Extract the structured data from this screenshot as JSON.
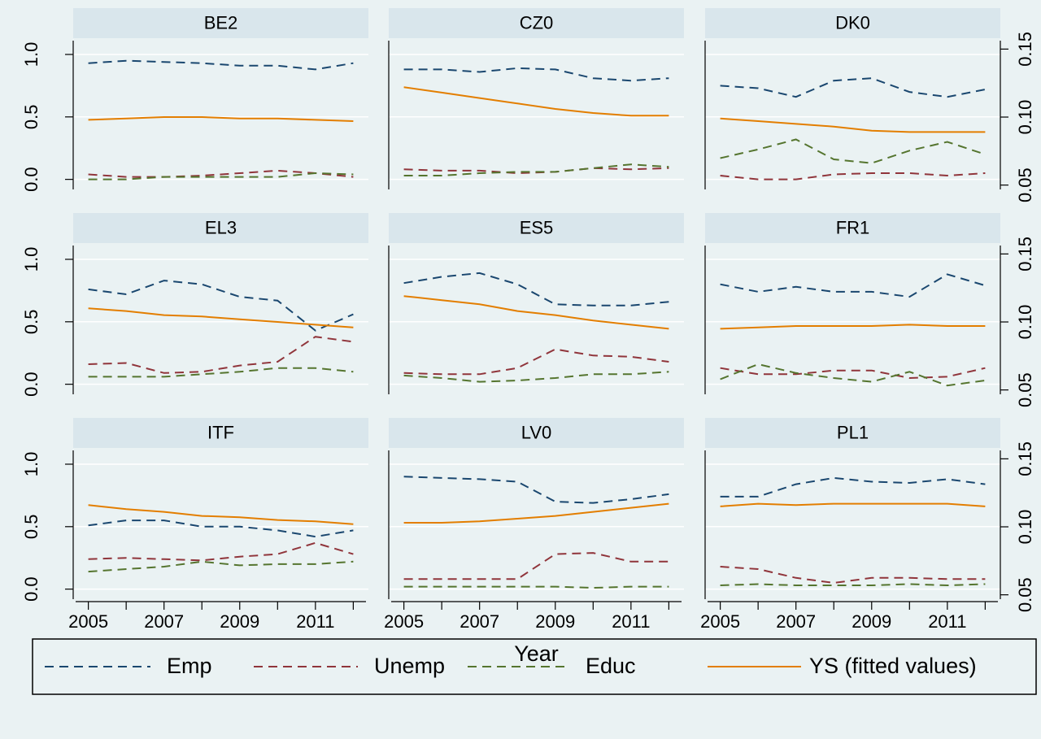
{
  "chart_data": [
    {
      "type": "line",
      "title": "BE2",
      "x": [
        2005,
        2006,
        2007,
        2008,
        2009,
        2010,
        2011,
        2012
      ],
      "xlim": [
        2004.6,
        2012.4
      ],
      "ylim": [
        -0.1,
        1.13
      ],
      "yticks": [
        {
          "value": 0,
          "label": "0.0"
        },
        0.5,
        {
          "value": 1,
          "label": "1.0"
        }
      ],
      "y2lim": [
        0.045,
        0.158
      ],
      "grid": true,
      "series": [
        {
          "name": "Emp",
          "color": "#1a476f",
          "linestyle": "dash",
          "values": [
            0.93,
            0.95,
            0.94,
            0.93,
            0.91,
            0.91,
            0.88,
            0.93
          ]
        },
        {
          "name": "Unemp",
          "color": "#90353b",
          "linestyle": "dash",
          "values": [
            0.04,
            0.02,
            0.02,
            0.03,
            0.05,
            0.07,
            0.05,
            0.02
          ]
        },
        {
          "name": "Educ",
          "color": "#55752f",
          "linestyle": "dash",
          "values": [
            0.0,
            0.0,
            0.02,
            0.02,
            0.02,
            0.02,
            0.05,
            0.04
          ]
        },
        {
          "name": "YS (fitted values)",
          "color": "#e37e00",
          "linestyle": "solid",
          "axis": "y2",
          "values": [
            0.098,
            0.099,
            0.1,
            0.1,
            0.099,
            0.099,
            0.098,
            0.097
          ]
        }
      ]
    },
    {
      "type": "line",
      "title": "CZ0",
      "x": [
        2005,
        2006,
        2007,
        2008,
        2009,
        2010,
        2011,
        2012
      ],
      "xlim": [
        2004.6,
        2012.4
      ],
      "ylim": [
        -0.1,
        1.13
      ],
      "yticks": [
        0,
        0.5,
        1
      ],
      "y2lim": [
        0.045,
        0.158
      ],
      "grid": true,
      "series": [
        {
          "values": [
            0.88,
            0.88,
            0.86,
            0.89,
            0.88,
            0.81,
            0.79,
            0.81
          ]
        },
        {
          "values": [
            0.08,
            0.07,
            0.07,
            0.05,
            0.06,
            0.09,
            0.08,
            0.09
          ]
        },
        {
          "values": [
            0.03,
            0.03,
            0.05,
            0.06,
            0.06,
            0.09,
            0.12,
            0.1
          ]
        },
        {
          "axis": "y2",
          "values": [
            0.122,
            0.118,
            0.114,
            0.11,
            0.106,
            0.103,
            0.101,
            0.101
          ]
        }
      ]
    },
    {
      "type": "line",
      "title": "DK0",
      "x": [
        2005,
        2006,
        2007,
        2008,
        2009,
        2010,
        2011,
        2012
      ],
      "xlim": [
        2004.6,
        2012.4
      ],
      "ylim": [
        -0.1,
        1.13
      ],
      "yticks": [
        0,
        0.5,
        1
      ],
      "y2lim": [
        0.045,
        0.158
      ],
      "y2ticks": [
        0.05,
        {
          "value": 0.1,
          "label": "0.10"
        },
        0.15
      ],
      "grid": true,
      "series": [
        {
          "values": [
            0.75,
            0.73,
            0.66,
            0.79,
            0.81,
            0.7,
            0.66,
            0.72
          ]
        },
        {
          "values": [
            0.03,
            0.0,
            0.0,
            0.04,
            0.05,
            0.05,
            0.03,
            0.05
          ]
        },
        {
          "values": [
            0.17,
            0.24,
            0.32,
            0.16,
            0.13,
            0.23,
            0.3,
            0.2
          ]
        },
        {
          "axis": "y2",
          "values": [
            0.099,
            0.097,
            0.095,
            0.093,
            0.09,
            0.089,
            0.089,
            0.089
          ]
        }
      ]
    },
    {
      "type": "line",
      "title": "EL3",
      "x": [
        2005,
        2006,
        2007,
        2008,
        2009,
        2010,
        2011,
        2012
      ],
      "xlim": [
        2004.6,
        2012.4
      ],
      "ylim": [
        -0.1,
        1.13
      ],
      "yticks": [
        {
          "value": 0,
          "label": "0.0"
        },
        0.5,
        {
          "value": 1,
          "label": "1.0"
        }
      ],
      "y2lim": [
        0.045,
        0.158
      ],
      "grid": true,
      "series": [
        {
          "values": [
            0.76,
            0.72,
            0.83,
            0.8,
            0.7,
            0.67,
            0.43,
            0.56
          ]
        },
        {
          "values": [
            0.16,
            0.17,
            0.09,
            0.1,
            0.15,
            0.18,
            0.38,
            0.34
          ]
        },
        {
          "values": [
            0.06,
            0.06,
            0.06,
            0.08,
            0.1,
            0.13,
            0.13,
            0.1
          ]
        },
        {
          "axis": "y2",
          "values": [
            0.11,
            0.108,
            0.105,
            0.104,
            0.102,
            0.1,
            0.098,
            0.096
          ]
        }
      ]
    },
    {
      "type": "line",
      "title": "ES5",
      "x": [
        2005,
        2006,
        2007,
        2008,
        2009,
        2010,
        2011,
        2012
      ],
      "xlim": [
        2004.6,
        2012.4
      ],
      "ylim": [
        -0.1,
        1.13
      ],
      "yticks": [
        0,
        0.5,
        1
      ],
      "y2lim": [
        0.045,
        0.158
      ],
      "grid": true,
      "series": [
        {
          "values": [
            0.81,
            0.86,
            0.89,
            0.8,
            0.64,
            0.63,
            0.63,
            0.66
          ]
        },
        {
          "values": [
            0.09,
            0.08,
            0.08,
            0.13,
            0.28,
            0.23,
            0.22,
            0.18
          ]
        },
        {
          "values": [
            0.07,
            0.05,
            0.02,
            0.03,
            0.05,
            0.08,
            0.08,
            0.1
          ]
        },
        {
          "axis": "y2",
          "values": [
            0.119,
            0.116,
            0.113,
            0.108,
            0.105,
            0.101,
            0.098,
            0.095
          ]
        }
      ]
    },
    {
      "type": "line",
      "title": "FR1",
      "x": [
        2005,
        2006,
        2007,
        2008,
        2009,
        2010,
        2011,
        2012
      ],
      "xlim": [
        2004.6,
        2012.4
      ],
      "ylim": [
        -0.1,
        1.13
      ],
      "yticks": [
        0,
        0.5,
        1
      ],
      "y2lim": [
        0.045,
        0.158
      ],
      "y2ticks": [
        0.05,
        {
          "value": 0.1,
          "label": "0.10"
        },
        0.15
      ],
      "grid": true,
      "series": [
        {
          "values": [
            0.8,
            0.74,
            0.78,
            0.74,
            0.74,
            0.7,
            0.88,
            0.79
          ]
        },
        {
          "values": [
            0.13,
            0.08,
            0.08,
            0.11,
            0.11,
            0.05,
            0.06,
            0.13
          ]
        },
        {
          "values": [
            0.04,
            0.16,
            0.09,
            0.05,
            0.02,
            0.1,
            -0.01,
            0.03
          ]
        },
        {
          "axis": "y2",
          "values": [
            0.095,
            0.096,
            0.097,
            0.097,
            0.097,
            0.098,
            0.097,
            0.097
          ]
        }
      ]
    },
    {
      "type": "line",
      "title": "ITF",
      "x": [
        2005,
        2006,
        2007,
        2008,
        2009,
        2010,
        2011,
        2012
      ],
      "xlim": [
        2004.6,
        2012.4
      ],
      "ylim": [
        -0.1,
        1.13
      ],
      "yticks": [
        {
          "value": 0,
          "label": "0.0"
        },
        0.5,
        {
          "value": 1,
          "label": "1.0"
        }
      ],
      "y2lim": [
        0.045,
        0.158
      ],
      "xticks": [
        2005,
        2007,
        2009,
        2011
      ],
      "xminor": [
        2006,
        2008,
        2010,
        2012
      ],
      "grid": true,
      "series": [
        {
          "values": [
            0.51,
            0.55,
            0.55,
            0.5,
            0.5,
            0.47,
            0.42,
            0.47
          ]
        },
        {
          "values": [
            0.24,
            0.25,
            0.24,
            0.23,
            0.26,
            0.28,
            0.37,
            0.28
          ]
        },
        {
          "values": [
            0.14,
            0.16,
            0.18,
            0.22,
            0.19,
            0.2,
            0.2,
            0.22
          ]
        },
        {
          "axis": "y2",
          "values": [
            0.116,
            0.113,
            0.111,
            0.108,
            0.107,
            0.105,
            0.104,
            0.102
          ]
        }
      ]
    },
    {
      "type": "line",
      "title": "LV0",
      "xlabel": "Year",
      "x": [
        2005,
        2006,
        2007,
        2008,
        2009,
        2010,
        2011,
        2012
      ],
      "xlim": [
        2004.6,
        2012.4
      ],
      "ylim": [
        -0.1,
        1.13
      ],
      "yticks": [
        0,
        0.5,
        1
      ],
      "y2lim": [
        0.045,
        0.158
      ],
      "xticks": [
        2005,
        2007,
        2009,
        2011
      ],
      "xminor": [
        2006,
        2008,
        2010,
        2012
      ],
      "grid": true,
      "series": [
        {
          "values": [
            0.9,
            0.89,
            0.88,
            0.86,
            0.7,
            0.69,
            0.72,
            0.76
          ]
        },
        {
          "values": [
            0.08,
            0.08,
            0.08,
            0.08,
            0.28,
            0.29,
            0.22,
            0.22
          ]
        },
        {
          "values": [
            0.02,
            0.02,
            0.02,
            0.02,
            0.02,
            0.01,
            0.02,
            0.02
          ]
        },
        {
          "axis": "y2",
          "values": [
            0.103,
            0.103,
            0.104,
            0.106,
            0.108,
            0.111,
            0.114,
            0.117
          ]
        }
      ]
    },
    {
      "type": "line",
      "title": "PL1",
      "x": [
        2005,
        2006,
        2007,
        2008,
        2009,
        2010,
        2011,
        2012
      ],
      "xlim": [
        2004.6,
        2012.4
      ],
      "ylim": [
        -0.1,
        1.13
      ],
      "yticks": [
        0,
        0.5,
        1
      ],
      "y2lim": [
        0.045,
        0.158
      ],
      "y2ticks": [
        0.05,
        {
          "value": 0.1,
          "label": "0.10"
        },
        0.15
      ],
      "xticks": [
        2005,
        2007,
        2009,
        2011
      ],
      "xminor": [
        2006,
        2008,
        2010,
        2012
      ],
      "grid": true,
      "series": [
        {
          "values": [
            0.74,
            0.74,
            0.84,
            0.89,
            0.86,
            0.85,
            0.88,
            0.84
          ]
        },
        {
          "values": [
            0.18,
            0.16,
            0.09,
            0.05,
            0.09,
            0.09,
            0.08,
            0.08
          ]
        },
        {
          "values": [
            0.03,
            0.04,
            0.03,
            0.03,
            0.03,
            0.04,
            0.03,
            0.04
          ]
        },
        {
          "axis": "y2",
          "values": [
            0.115,
            0.117,
            0.116,
            0.117,
            0.117,
            0.117,
            0.117,
            0.115
          ]
        }
      ]
    }
  ]
}
